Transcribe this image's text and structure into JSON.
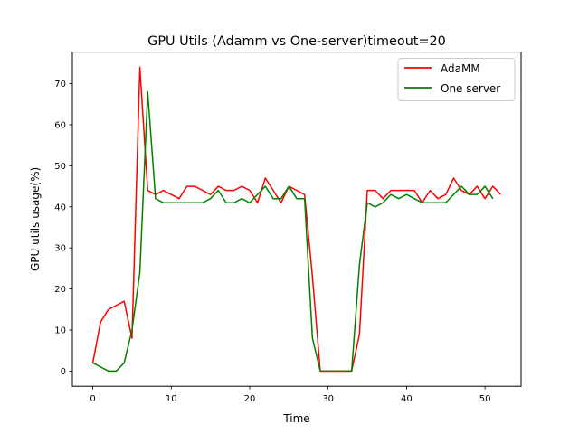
{
  "chart_data": {
    "type": "line",
    "title": "GPU Utils (Adamm vs One-server)timeout=20",
    "xlabel": "Time",
    "ylabel": "GPU utils usage(%)",
    "xlim": [
      -2.6,
      54.6
    ],
    "ylim": [
      -3.7,
      77.7
    ],
    "xticks": [
      0,
      10,
      20,
      30,
      40,
      50
    ],
    "yticks": [
      0,
      10,
      20,
      30,
      40,
      50,
      60,
      70
    ],
    "grid": false,
    "legend_position": "top-right",
    "series": [
      {
        "name": "AdaMM",
        "color": "#ff0000",
        "x": [
          0,
          1,
          2,
          3,
          4,
          5,
          6,
          7,
          8,
          9,
          10,
          11,
          12,
          13,
          14,
          15,
          16,
          17,
          18,
          19,
          20,
          21,
          22,
          23,
          24,
          25,
          26,
          27,
          28,
          29,
          30,
          31,
          32,
          33,
          34,
          35,
          36,
          37,
          38,
          39,
          40,
          41,
          42,
          43,
          44,
          45,
          46,
          47,
          48,
          49,
          50,
          51,
          52
        ],
        "values": [
          2,
          12,
          15,
          16,
          17,
          8,
          74,
          44,
          43,
          44,
          43,
          42,
          45,
          45,
          44,
          43,
          45,
          44,
          44,
          45,
          44,
          41,
          47,
          44,
          41,
          45,
          44,
          43,
          23,
          0,
          0,
          0,
          0,
          0,
          9,
          44,
          44,
          42,
          44,
          44,
          44,
          44,
          41,
          44,
          42,
          43,
          47,
          44,
          43,
          45,
          42,
          45,
          43
        ]
      },
      {
        "name": "One server",
        "color": "#008000",
        "x": [
          0,
          1,
          2,
          3,
          4,
          5,
          6,
          7,
          8,
          9,
          10,
          11,
          12,
          13,
          14,
          15,
          16,
          17,
          18,
          19,
          20,
          21,
          22,
          23,
          24,
          25,
          26,
          27,
          28,
          29,
          30,
          31,
          32,
          33,
          34,
          35,
          36,
          37,
          38,
          39,
          40,
          41,
          42,
          43,
          44,
          45,
          46,
          47,
          48,
          49,
          50,
          51
        ],
        "values": [
          2,
          1,
          0,
          0,
          2,
          10,
          24,
          68,
          42,
          41,
          41,
          41,
          41,
          41,
          41,
          42,
          44,
          41,
          41,
          42,
          41,
          43,
          45,
          42,
          42,
          45,
          42,
          42,
          8,
          0,
          0,
          0,
          0,
          0,
          26,
          41,
          40,
          41,
          43,
          42,
          43,
          42,
          41,
          41,
          41,
          41,
          43,
          45,
          43,
          43,
          45,
          42
        ]
      }
    ]
  }
}
